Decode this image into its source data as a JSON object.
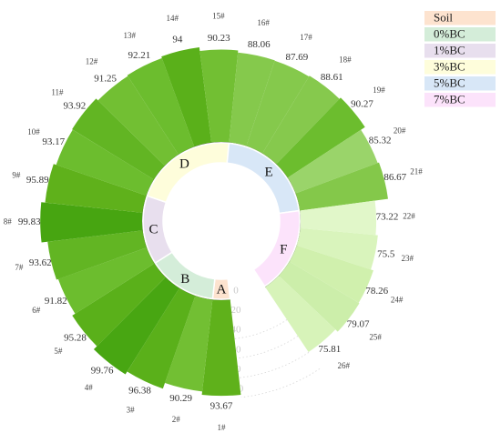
{
  "chart_data": {
    "type": "radial-bar",
    "title": "",
    "legend": {
      "position": "top-right",
      "items": [
        {
          "label": "Soil",
          "color": "#fde3cf"
        },
        {
          "label": "0%BC",
          "color": "#d4edd9"
        },
        {
          "label": "1%BC",
          "color": "#e8dfee"
        },
        {
          "label": "3%BC",
          "color": "#fefddb"
        },
        {
          "label": "5%BC",
          "color": "#d8e7f7"
        },
        {
          "label": " 7%BC",
          "color": "#fce3fb"
        }
      ]
    },
    "radial_axis": {
      "range": [
        0,
        100
      ],
      "ticks": [
        "0",
        "20",
        "40",
        "60",
        "80",
        "100"
      ]
    },
    "groups": [
      {
        "label": "A",
        "color": "#fde3cf",
        "samples": [
          "1#"
        ]
      },
      {
        "label": "B",
        "color": "#d4edd9",
        "samples": [
          "2#",
          "3#",
          "4#",
          "5#"
        ]
      },
      {
        "label": "C",
        "color": "#e8dfee",
        "samples": [
          "6#",
          "7#",
          "8#",
          "9#"
        ]
      },
      {
        "label": "D",
        "color": "#fefddb",
        "samples": [
          "10#",
          "11#",
          "12#",
          "13#",
          "14#",
          "15#"
        ]
      },
      {
        "label": "E",
        "color": "#d8e7f7",
        "samples": [
          "16#",
          "17#",
          "18#",
          "19#",
          "20#",
          "21#"
        ]
      },
      {
        "label": "F",
        "color": "#fce3fb",
        "samples": [
          "22#",
          "23#",
          "24#",
          "25#",
          "26#"
        ]
      }
    ],
    "categories": [
      "1#",
      "2#",
      "3#",
      "4#",
      "5#",
      "6#",
      "7#",
      "8#",
      "9#",
      "10#",
      "11#",
      "12#",
      "13#",
      "14#",
      "15#",
      "16#",
      "17#",
      "18#",
      "19#",
      "20#",
      "21#",
      "22#",
      "23#",
      "24#",
      "25#",
      "26#"
    ],
    "values": [
      93.67,
      90.29,
      96.38,
      99.76,
      95.28,
      91.82,
      93.62,
      99.83,
      95.89,
      93.17,
      93.92,
      91.25,
      92.21,
      94,
      90.23,
      88.06,
      87.69,
      88.61,
      90.27,
      85.32,
      86.67,
      73.22,
      75.5,
      78.26,
      79.07,
      75.81
    ],
    "value_labels": [
      "93.67",
      "90.29",
      "96.38",
      "99.76",
      "95.28",
      "91.82",
      "93.62",
      "99.83",
      "95.89",
      "93.17",
      "93.92",
      "91.25",
      "92.21",
      "94",
      "90.23",
      "88.06",
      "87.69",
      "88.61",
      "90.27",
      "85.32",
      "86.67",
      "73.22",
      "75.5",
      "78.26",
      "79.07",
      "75.81"
    ],
    "colors": [
      "#5fb11b",
      "#72bf33",
      "#5ab01a",
      "#48a612",
      "#5ab01a",
      "#6cbd2e",
      "#62b523",
      "#47a511",
      "#5fb11b",
      "#6cbd2e",
      "#62b523",
      "#72bf33",
      "#6cbd2e",
      "#5ab01a",
      "#72bf33",
      "#85c94c",
      "#85c94c",
      "#86c94d",
      "#6cbd2e",
      "#9ad46a",
      "#84c84a",
      "#e1f7c9",
      "#d9f4bc",
      "#d0f0ad",
      "#cceeaa",
      "#d7f3b9"
    ]
  }
}
